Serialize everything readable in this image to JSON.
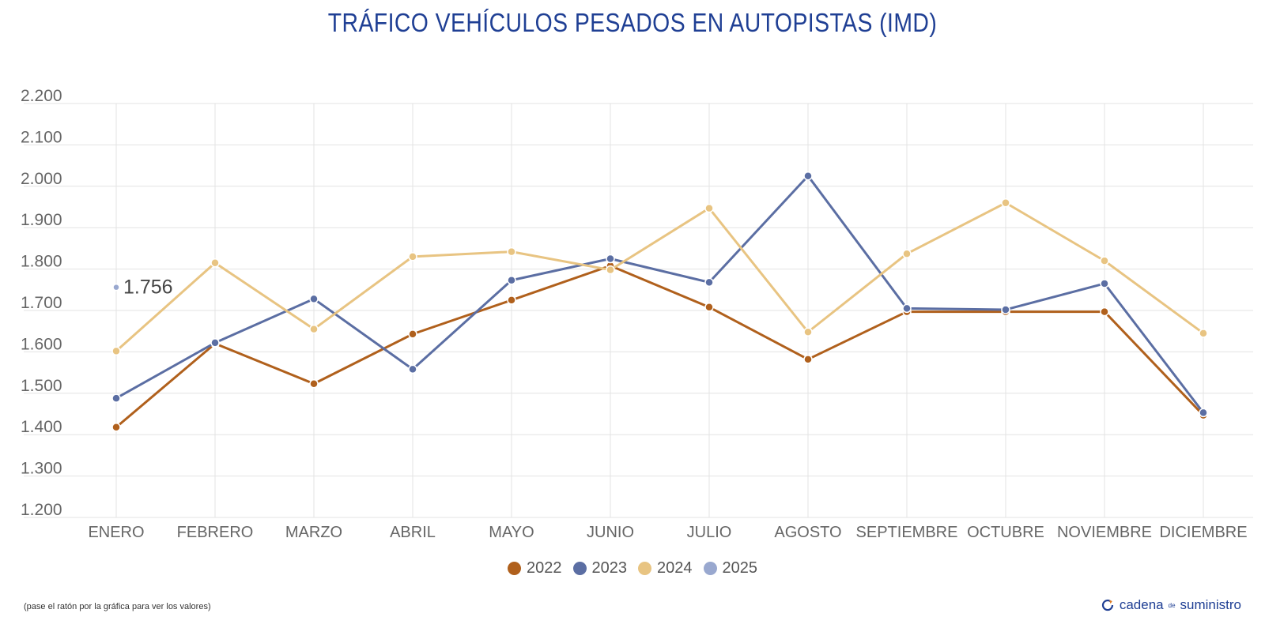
{
  "title": "TRÁFICO VEHÍCULOS PESADOS EN AUTOPISTAS (IMD)",
  "footnote": "(pase el ratón por la gráfica para ver los valores)",
  "logo": {
    "part1": "cadena",
    "part2": "de",
    "part3": "suministro"
  },
  "chart_data": {
    "type": "line",
    "categories": [
      "ENERO",
      "FEBRERO",
      "MARZO",
      "ABRIL",
      "MAYO",
      "JUNIO",
      "JULIO",
      "AGOSTO",
      "SEPTIEMBRE",
      "OCTUBRE",
      "NOVIEMBRE",
      "DICIEMBRE"
    ],
    "ylim": [
      1200,
      2200
    ],
    "yticks": [
      1200,
      1300,
      1400,
      1500,
      1600,
      1700,
      1800,
      1900,
      2000,
      2100,
      2200
    ],
    "ytick_labels": [
      "1.200",
      "1.300",
      "1.400",
      "1.500",
      "1.600",
      "1.700",
      "1.800",
      "1.900",
      "2.000",
      "2.100",
      "2.200"
    ],
    "grid": true,
    "legend_position": "bottom",
    "series": [
      {
        "name": "2022",
        "color": "#b0601c",
        "values": [
          1418,
          1620,
          1523,
          1643,
          1725,
          1808,
          1708,
          1582,
          1697,
          1697,
          1697,
          1447
        ]
      },
      {
        "name": "2023",
        "color": "#5b6ea3",
        "values": [
          1488,
          1622,
          1728,
          1558,
          1773,
          1825,
          1768,
          2025,
          1705,
          1702,
          1765,
          1453
        ]
      },
      {
        "name": "2024",
        "color": "#e8c482",
        "values": [
          1602,
          1815,
          1655,
          1830,
          1842,
          1798,
          1947,
          1648,
          1837,
          1960,
          1820,
          1645
        ]
      },
      {
        "name": "2025",
        "color": "#99a8cf",
        "values": [
          1756,
          null,
          null,
          null,
          null,
          null,
          null,
          null,
          null,
          null,
          null,
          null
        ],
        "data_label": "1.756"
      }
    ]
  }
}
